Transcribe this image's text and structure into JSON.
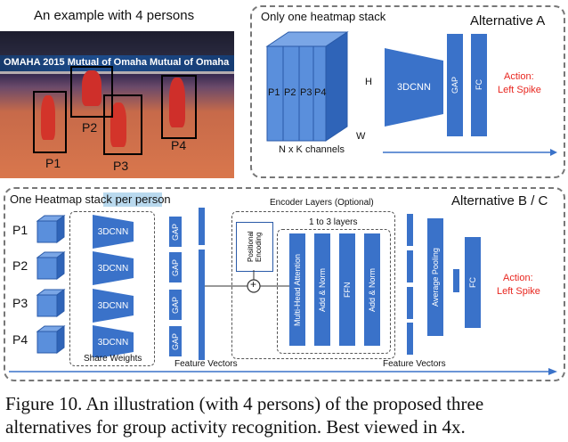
{
  "photo": {
    "title": "An example with 4 persons",
    "banner_text": "OMAHA 2015   Mutual of Omaha   Mutual of Omaha",
    "persons": [
      "P1",
      "P2",
      "P3",
      "P4"
    ]
  },
  "alt_a": {
    "subtitle": "Only one heatmap stack",
    "title": "Alternative A",
    "stack_labels": [
      "P1",
      "P2",
      "P3",
      "P4"
    ],
    "h_label": "H",
    "w_label": "W",
    "channels_label": "N x K channels",
    "cnn_label": "3DCNN",
    "gap_label": "GAP",
    "fc_label": "FC",
    "action_line1": "Action:",
    "action_line2": "Left Spike"
  },
  "alt_bc": {
    "subtitle": "One Heatmap stack per person",
    "title": "Alternative B / C",
    "persons": [
      "P1",
      "P2",
      "P3",
      "P4"
    ],
    "cnn_label": "3DCNN",
    "gap_label": "GAP",
    "share_weights": "Share Weights",
    "feature_vectors_left": "Feature Vectors",
    "encoder_title": "Encoder Layers (Optional)",
    "layers_label": "1 to 3 layers",
    "positional_encoding": "Positional Encoding",
    "plus": "+",
    "mha": "Multi-Head Attention",
    "addnorm1": "Add & Norm",
    "ffn": "FFN",
    "addnorm2": "Add & Norm",
    "feature_vectors_right": "Feature Vectors",
    "avg_pool": "Average Pooling",
    "fc_label": "FC",
    "action_line1": "Action:",
    "action_line2": "Left Spike"
  },
  "caption": {
    "line1": "Figure 10.  An illustration (with 4 persons) of the proposed three",
    "line2": "alternatives for group activity recognition. Best viewed in 4x."
  },
  "colors": {
    "block": "#3a72c9",
    "accent_red": "#e8261f",
    "highlight": "#b9d9ee"
  }
}
